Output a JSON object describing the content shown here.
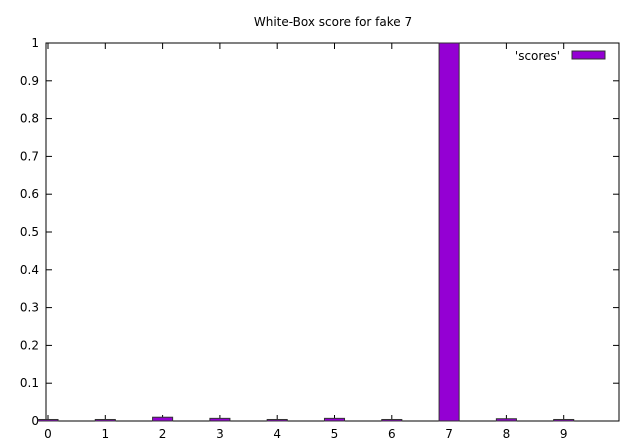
{
  "chart_data": {
    "type": "bar",
    "title": "White-Box score for fake 7",
    "xlabel": "",
    "ylabel": "",
    "categories": [
      "0",
      "1",
      "2",
      "3",
      "4",
      "5",
      "6",
      "7",
      "8",
      "9"
    ],
    "series": [
      {
        "name": "'scores'",
        "values": [
          0.004,
          0.004,
          0.01,
          0.007,
          0.004,
          0.007,
          0.004,
          1.0,
          0.006,
          0.004
        ]
      }
    ],
    "x_ticks": [
      "0",
      "1",
      "2",
      "3",
      "4",
      "5",
      "6",
      "7",
      "8",
      "9"
    ],
    "y_ticks": [
      "0",
      "0.1",
      "0.2",
      "0.3",
      "0.4",
      "0.5",
      "0.6",
      "0.7",
      "0.8",
      "0.9",
      "1"
    ],
    "ylim": [
      0,
      1
    ],
    "xlim": [
      0,
      10
    ],
    "grid": false,
    "legend_position": "top-right",
    "colors": {
      "bar_fill": "#9400d3",
      "bar_stroke": "#333333",
      "axis": "#000000",
      "background": "#ffffff"
    }
  }
}
